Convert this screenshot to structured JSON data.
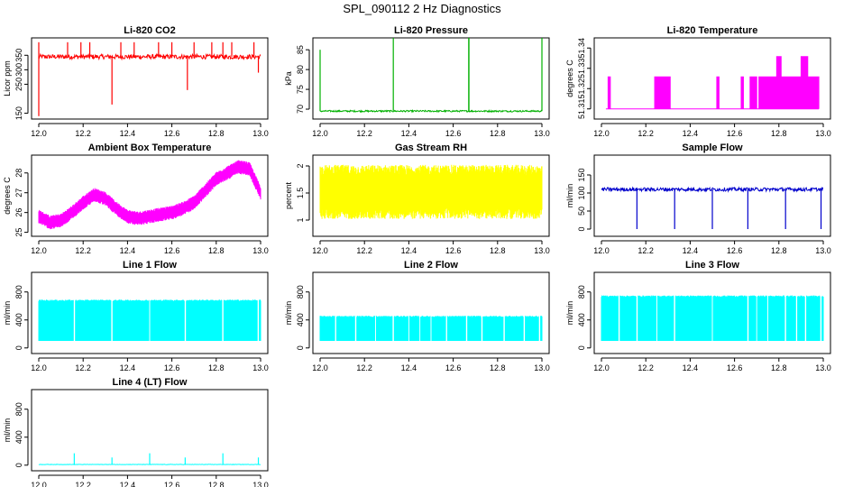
{
  "page_title": "SPL_090112  2 Hz Diagnostics",
  "chart_data": [
    {
      "type": "line",
      "title": "Li-820 CO2",
      "ylabel": "Licor ppm",
      "color": "#ff0000",
      "xlim": [
        12.0,
        13.0
      ],
      "xticks": [
        "12.0",
        "12.2",
        "12.4",
        "12.6",
        "12.8",
        "13.0"
      ],
      "ylim": [
        130,
        410
      ],
      "yticks": [
        150,
        250,
        300,
        350
      ],
      "pattern": "baseline-spikes",
      "series": [
        {
          "name": "CO2",
          "baseline": 345,
          "noise": 8,
          "spikes": [
            [
              12.0,
              395
            ],
            [
              12.0,
              140
            ],
            [
              12.13,
              395
            ],
            [
              12.19,
              395
            ],
            [
              12.23,
              395
            ],
            [
              12.33,
              180
            ],
            [
              12.37,
              395
            ],
            [
              12.43,
              395
            ],
            [
              12.54,
              395
            ],
            [
              12.6,
              395
            ],
            [
              12.67,
              230
            ],
            [
              12.7,
              395
            ],
            [
              12.78,
              395
            ],
            [
              12.83,
              395
            ],
            [
              12.87,
              395
            ],
            [
              12.97,
              395
            ],
            [
              12.99,
              290
            ]
          ]
        }
      ]
    },
    {
      "type": "line",
      "title": "Li-820 Pressure",
      "ylabel": "kPa",
      "color": "#00b000",
      "xlim": [
        12.0,
        13.0
      ],
      "xticks": [
        "12.0",
        "12.2",
        "12.4",
        "12.6",
        "12.8",
        "13.0"
      ],
      "ylim": [
        67.5,
        88
      ],
      "yticks": [
        70,
        75,
        80,
        85
      ],
      "pattern": "baseline-spikes",
      "series": [
        {
          "name": "Pressure",
          "baseline": 69.5,
          "noise": 0.2,
          "spikes": [
            [
              12.0,
              85
            ],
            [
              12.33,
              88
            ],
            [
              12.67,
              88
            ],
            [
              12.671,
              88
            ],
            [
              13.0,
              88
            ]
          ]
        }
      ]
    },
    {
      "type": "line",
      "title": "Li-820 Temperature",
      "ylabel": "degrees C",
      "color": "#ff00ff",
      "xlim": [
        12.0,
        13.0
      ],
      "xticks": [
        "12.0",
        "12.2",
        "12.4",
        "12.6",
        "12.8",
        "13.0"
      ],
      "ylim": [
        51.305,
        51.345
      ],
      "yticks": [
        51.31,
        51.32,
        51.33,
        51.34
      ],
      "pattern": "two-level",
      "series": [
        {
          "name": "Temperature",
          "low": 51.31,
          "mid": 51.326,
          "high": 51.336,
          "blocks": [
            [
              12.03,
              12.04,
              51.326
            ],
            [
              12.24,
              12.31,
              51.326
            ],
            [
              12.52,
              12.53,
              51.326
            ],
            [
              12.63,
              12.64,
              51.326
            ],
            [
              12.67,
              12.7,
              51.326
            ],
            [
              12.71,
              12.98,
              51.326
            ],
            [
              12.79,
              12.81,
              51.336
            ],
            [
              12.9,
              12.93,
              51.336
            ]
          ]
        }
      ]
    },
    {
      "type": "line",
      "title": "Ambient Box Temperature",
      "ylabel": "degrees C",
      "color": "#ff00ff",
      "xlim": [
        12.0,
        13.0
      ],
      "xticks": [
        "12.0",
        "12.2",
        "12.4",
        "12.6",
        "12.8",
        "13.0"
      ],
      "ylim": [
        24.8,
        28.9
      ],
      "yticks": [
        25,
        26,
        27,
        28
      ],
      "pattern": "noisy-band",
      "series": [
        {
          "name": "Box Temp",
          "x": [
            12.0,
            12.05,
            12.1,
            12.15,
            12.2,
            12.25,
            12.3,
            12.35,
            12.4,
            12.45,
            12.5,
            12.55,
            12.6,
            12.65,
            12.7,
            12.75,
            12.8,
            12.85,
            12.9,
            12.95,
            13.0
          ],
          "y": [
            25.8,
            25.5,
            25.6,
            26.0,
            26.5,
            26.9,
            26.7,
            26.2,
            25.8,
            25.7,
            25.8,
            25.9,
            26.0,
            26.2,
            26.5,
            27.1,
            27.7,
            28.0,
            28.3,
            28.2,
            27.0
          ],
          "amp": 0.35
        }
      ]
    },
    {
      "type": "line",
      "title": "Gas Stream RH",
      "ylabel": "percent",
      "color": "#ffff00",
      "xlim": [
        12.0,
        13.0
      ],
      "xticks": [
        "12.0",
        "12.2",
        "12.4",
        "12.6",
        "12.8",
        "13.0"
      ],
      "ylim": [
        0.7,
        2.2
      ],
      "yticks": [
        1.0,
        1.5,
        2.0
      ],
      "pattern": "noisy-band",
      "series": [
        {
          "name": "RH",
          "x": [
            12.0,
            12.5,
            13.0
          ],
          "y": [
            1.52,
            1.52,
            1.52
          ],
          "amp": 0.5
        }
      ]
    },
    {
      "type": "line",
      "title": "Sample Flow",
      "ylabel": "ml/min",
      "color": "#0000cc",
      "xlim": [
        12.0,
        13.0
      ],
      "xticks": [
        "12.0",
        "12.2",
        "12.4",
        "12.6",
        "12.8",
        "13.0"
      ],
      "ylim": [
        -20,
        205
      ],
      "yticks": [
        0,
        50,
        100,
        150
      ],
      "pattern": "baseline-spikes",
      "series": [
        {
          "name": "Sample Flow",
          "baseline": 110,
          "noise": 5,
          "spikes": [
            [
              12.16,
              0
            ],
            [
              12.33,
              0
            ],
            [
              12.5,
              0
            ],
            [
              12.66,
              0
            ],
            [
              12.83,
              0
            ],
            [
              12.99,
              0
            ]
          ]
        }
      ]
    },
    {
      "type": "line",
      "title": "Line 1 Flow",
      "ylabel": "ml/min",
      "color": "#00ffff",
      "xlim": [
        12.0,
        13.0
      ],
      "xticks": [
        "12.0",
        "12.2",
        "12.4",
        "12.6",
        "12.8",
        "13.0"
      ],
      "ylim": [
        -80,
        1080
      ],
      "yticks": [
        0,
        400,
        800
      ],
      "pattern": "on-off",
      "series": [
        {
          "name": "Line 1",
          "low": 100,
          "high": 680,
          "gaps": [
            12.16,
            12.33,
            12.5,
            12.66,
            12.83,
            12.99
          ]
        }
      ]
    },
    {
      "type": "line",
      "title": "Line 2 Flow",
      "ylabel": "ml/min",
      "color": "#00ffff",
      "xlim": [
        12.0,
        13.0
      ],
      "xticks": [
        "12.0",
        "12.2",
        "12.4",
        "12.6",
        "12.8",
        "13.0"
      ],
      "ylim": [
        -80,
        1080
      ],
      "yticks": [
        0,
        400,
        800
      ],
      "pattern": "on-off",
      "series": [
        {
          "name": "Line 2",
          "low": 100,
          "high": 450,
          "gaps": [
            12.07,
            12.16,
            12.25,
            12.33,
            12.4,
            12.45,
            12.5,
            12.57,
            12.66,
            12.73,
            12.83,
            12.92,
            12.99
          ]
        }
      ]
    },
    {
      "type": "line",
      "title": "Line 3 Flow",
      "ylabel": "ml/min",
      "color": "#00ffff",
      "xlim": [
        12.0,
        13.0
      ],
      "xticks": [
        "12.0",
        "12.2",
        "12.4",
        "12.6",
        "12.8",
        "13.0"
      ],
      "ylim": [
        -80,
        1080
      ],
      "yticks": [
        0,
        400,
        800
      ],
      "pattern": "on-off",
      "series": [
        {
          "name": "Line 3",
          "low": 100,
          "high": 740,
          "gaps": [
            12.08,
            12.16,
            12.25,
            12.33,
            12.5,
            12.66,
            12.7,
            12.75,
            12.83,
            12.88,
            12.92,
            12.99
          ]
        }
      ]
    },
    {
      "type": "line",
      "title": "Line 4 (LT) Flow",
      "ylabel": "ml/min",
      "color": "#00ffff",
      "xlim": [
        12.0,
        13.0
      ],
      "xticks": [
        "12.0",
        "12.2",
        "12.4",
        "12.6",
        "12.8",
        "13.0"
      ],
      "ylim": [
        -80,
        1080
      ],
      "yticks": [
        0,
        400,
        800
      ],
      "pattern": "baseline-spikes",
      "series": [
        {
          "name": "Line 4",
          "baseline": 10,
          "noise": 3,
          "spikes": [
            [
              12.16,
              170
            ],
            [
              12.33,
              110
            ],
            [
              12.5,
              170
            ],
            [
              12.66,
              110
            ],
            [
              12.83,
              170
            ],
            [
              12.99,
              110
            ]
          ]
        }
      ]
    }
  ]
}
